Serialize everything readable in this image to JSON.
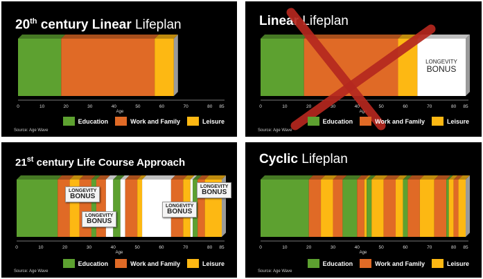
{
  "colors": {
    "education": "#5da130",
    "work": "#e06a26",
    "leisure": "#fdb813",
    "bonus": "#ffffff",
    "cross": "#b5281f"
  },
  "panels": [
    {
      "title_bold": "20",
      "title_sup": "th",
      "title_bold2": " century Linear",
      "title_rest": " Lifeplan"
    },
    {
      "title_bold": "Linear",
      "title_sup": "",
      "title_bold2": "",
      "title_rest": " Lifeplan"
    },
    {
      "title_bold": "21",
      "title_sup": "st",
      "title_bold2": " century Life Course Approach",
      "title_rest": ""
    },
    {
      "title_bold": "Cyclic",
      "title_sup": "",
      "title_bold2": "",
      "title_rest": " Lifeplan"
    }
  ],
  "legend": {
    "education": "Education",
    "work": "Work and Family",
    "leisure": "Leisure"
  },
  "source": "Source: Age Wave",
  "bonus": {
    "line1": "LONGEVITY",
    "line2": "BONUS"
  },
  "chart_data": [
    {
      "type": "bar",
      "title": "20th century Linear Lifeplan",
      "xlabel": "Age",
      "xlim": [
        0,
        85
      ],
      "ticks": [
        0,
        10,
        20,
        30,
        40,
        50,
        60,
        70,
        80,
        85
      ],
      "segments": [
        {
          "from": 0,
          "to": 18,
          "category": "education"
        },
        {
          "from": 18,
          "to": 57,
          "category": "work"
        },
        {
          "from": 57,
          "to": 65,
          "category": "leisure"
        }
      ]
    },
    {
      "type": "bar",
      "title": "Linear Lifeplan",
      "xlabel": "Age",
      "xlim": [
        0,
        85
      ],
      "ticks": [
        0,
        10,
        20,
        30,
        40,
        50,
        60,
        70,
        80,
        85
      ],
      "segments": [
        {
          "from": 0,
          "to": 18,
          "category": "education"
        },
        {
          "from": 18,
          "to": 57,
          "category": "work"
        },
        {
          "from": 57,
          "to": 65,
          "category": "leisure"
        },
        {
          "from": 65,
          "to": 85,
          "category": "bonus"
        }
      ],
      "annotation": "LONGEVITY BONUS",
      "crossed_out": true
    },
    {
      "type": "bar",
      "title": "21st century Life Course Approach",
      "xlabel": "Age",
      "xlim": [
        0,
        85
      ],
      "ticks": [
        0,
        10,
        20,
        30,
        40,
        50,
        60,
        70,
        80,
        85
      ],
      "segments": [
        {
          "from": 0,
          "to": 17,
          "category": "education"
        },
        {
          "from": 17,
          "to": 22,
          "category": "work"
        },
        {
          "from": 22,
          "to": 26,
          "category": "leisure"
        },
        {
          "from": 26,
          "to": 31,
          "category": "work"
        },
        {
          "from": 31,
          "to": 33,
          "category": "education"
        },
        {
          "from": 33,
          "to": 37,
          "category": "work"
        },
        {
          "from": 37,
          "to": 40,
          "category": "bonus"
        },
        {
          "from": 40,
          "to": 43,
          "category": "education"
        },
        {
          "from": 43,
          "to": 45,
          "category": "bonus"
        },
        {
          "from": 45,
          "to": 50,
          "category": "work"
        },
        {
          "from": 50,
          "to": 52,
          "category": "leisure"
        },
        {
          "from": 52,
          "to": 64,
          "category": "bonus"
        },
        {
          "from": 64,
          "to": 69,
          "category": "work"
        },
        {
          "from": 69,
          "to": 72,
          "category": "leisure"
        },
        {
          "from": 72,
          "to": 73,
          "category": "bonus"
        },
        {
          "from": 73,
          "to": 75,
          "category": "education"
        },
        {
          "from": 75,
          "to": 78,
          "category": "work"
        },
        {
          "from": 78,
          "to": 85,
          "category": "leisure"
        }
      ],
      "annotations": [
        "LONGEVITY BONUS",
        "LONGEVITY BONUS",
        "LONGEVITY BONUS",
        "LONGEVITY BONUS"
      ]
    },
    {
      "type": "bar",
      "title": "Cyclic Lifeplan",
      "xlabel": "Age",
      "xlim": [
        0,
        85
      ],
      "ticks": [
        0,
        10,
        20,
        30,
        40,
        50,
        60,
        70,
        80,
        85
      ],
      "segments": [
        {
          "from": 0,
          "to": 20,
          "category": "education"
        },
        {
          "from": 20,
          "to": 25,
          "category": "work"
        },
        {
          "from": 25,
          "to": 30,
          "category": "leisure"
        },
        {
          "from": 30,
          "to": 34,
          "category": "work"
        },
        {
          "from": 34,
          "to": 40,
          "category": "education"
        },
        {
          "from": 40,
          "to": 43,
          "category": "work"
        },
        {
          "from": 43,
          "to": 44,
          "category": "leisure"
        },
        {
          "from": 44,
          "to": 46,
          "category": "education"
        },
        {
          "from": 46,
          "to": 51,
          "category": "leisure"
        },
        {
          "from": 51,
          "to": 56,
          "category": "work"
        },
        {
          "from": 56,
          "to": 59,
          "category": "leisure"
        },
        {
          "from": 59,
          "to": 61,
          "category": "education"
        },
        {
          "from": 61,
          "to": 66,
          "category": "work"
        },
        {
          "from": 66,
          "to": 72,
          "category": "leisure"
        },
        {
          "from": 72,
          "to": 77,
          "category": "work"
        },
        {
          "from": 77,
          "to": 78,
          "category": "education"
        },
        {
          "from": 78,
          "to": 80,
          "category": "leisure"
        },
        {
          "from": 80,
          "to": 82,
          "category": "work"
        },
        {
          "from": 82,
          "to": 85,
          "category": "leisure"
        }
      ]
    }
  ]
}
